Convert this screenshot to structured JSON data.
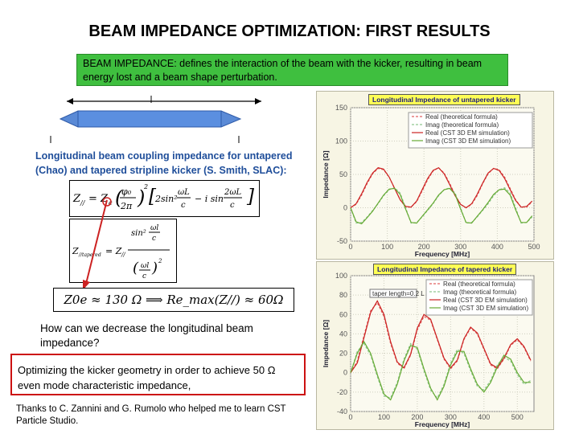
{
  "title": "BEAM IMPEDANCE OPTIMIZATION: FIRST RESULTS",
  "definition": "BEAM IMPEDANCE: defines the interaction of the beam with the kicker, resulting in beam energy lost and a beam shape perturbation.",
  "coupling_text": "Longitudinal beam coupling impedance for untapered (Chao) and tapered stripline kicker (S. Smith, SLAC):",
  "formula_bottom": "Z0e ≈ 130 Ω ⟹ Re_max(Z//) ≈ 60Ω",
  "question": "How can we decrease the longitudinal beam impedance?",
  "optimizing": "Optimizing the kicker geometry in order to achieve 50 Ω even mode characteristic impedance,",
  "thanks": "Thanks to C. Zannini and G. Rumolo who helped me to learn CST Particle Studio.",
  "colors": {
    "green_box": "#3fbf3f",
    "red_border": "#cc1111",
    "blue_text": "#1f4e9a",
    "real_formula": "#e06060",
    "imag_formula": "#90c890",
    "real_cst": "#cc2222",
    "imag_cst": "#66aa33"
  },
  "chart_data": [
    {
      "type": "line",
      "title": "Longitudinal Impedance of untapered kicker",
      "xlabel": "Frequency [MHz]",
      "ylabel": "Impedance [Ω]",
      "xlim": [
        0,
        500
      ],
      "ylim": [
        -50,
        150
      ],
      "xticks": [
        0,
        100,
        200,
        300,
        400,
        500
      ],
      "yticks": [
        -50,
        0,
        50,
        100,
        150
      ],
      "xtick_labels": [
        "0",
        "100",
        "200",
        "300",
        "400",
        "500"
      ],
      "ytick_labels": [
        "-50",
        "0",
        "50",
        "100",
        "150"
      ],
      "annotation": "",
      "legend_position": "top-right",
      "series": [
        {
          "name": "Real (theoretical formula)",
          "color": "#e06060",
          "dash": "3,2",
          "x": [
            0,
            15,
            30,
            45,
            60,
            75,
            90,
            105,
            120,
            135,
            150,
            165,
            180,
            195,
            210,
            225,
            240,
            255,
            270,
            285,
            300,
            315,
            330,
            345,
            360,
            375,
            390,
            405,
            420,
            435,
            450,
            465,
            480,
            495
          ],
          "y": [
            0,
            5,
            19,
            36,
            51,
            59,
            57,
            46,
            29,
            12,
            1,
            1,
            9,
            25,
            42,
            55,
            60,
            52,
            37,
            19,
            5,
            0,
            5,
            18,
            36,
            51,
            59,
            57,
            46,
            29,
            12,
            1,
            1,
            9
          ]
        },
        {
          "name": "Imag (theoretical formula)",
          "color": "#90c890",
          "dash": "3,2",
          "x": [
            0,
            15,
            30,
            45,
            60,
            75,
            90,
            105,
            120,
            135,
            150,
            165,
            180,
            195,
            210,
            225,
            240,
            255,
            270,
            285,
            300,
            315,
            330,
            345,
            360,
            375,
            390,
            405,
            420,
            435,
            450,
            465,
            480,
            495
          ],
          "y": [
            0,
            -23,
            -22,
            -14,
            -4,
            6,
            18,
            27,
            30,
            22,
            0,
            -23,
            -22,
            -14,
            -4,
            6,
            18,
            27,
            30,
            22,
            0,
            -23,
            -22,
            -14,
            -4,
            6,
            18,
            27,
            30,
            22,
            0,
            -23,
            -22,
            -14
          ]
        },
        {
          "name": "Real (CST 3D EM simulation)",
          "color": "#cc2222",
          "dash": "",
          "x": [
            0,
            15,
            30,
            45,
            60,
            75,
            90,
            105,
            120,
            135,
            150,
            165,
            180,
            195,
            210,
            225,
            240,
            255,
            270,
            285,
            300,
            315,
            330,
            345,
            360,
            375,
            390,
            405,
            420,
            435,
            450,
            465,
            480,
            495
          ],
          "y": [
            0,
            6,
            21,
            38,
            52,
            60,
            58,
            46,
            29,
            12,
            2,
            1,
            10,
            27,
            44,
            56,
            60,
            51,
            35,
            18,
            5,
            0,
            6,
            20,
            37,
            52,
            59,
            56,
            44,
            27,
            11,
            1,
            2,
            10
          ]
        },
        {
          "name": "Imag (CST 3D EM simulation)",
          "color": "#66aa33",
          "dash": "",
          "x": [
            0,
            15,
            30,
            45,
            60,
            75,
            90,
            105,
            120,
            135,
            150,
            165,
            180,
            195,
            210,
            225,
            240,
            255,
            270,
            285,
            300,
            315,
            330,
            345,
            360,
            375,
            390,
            405,
            420,
            435,
            450,
            465,
            480,
            495
          ],
          "y": [
            0,
            -21,
            -24,
            -15,
            -5,
            7,
            19,
            28,
            29,
            20,
            -2,
            -22,
            -23,
            -13,
            -3,
            7,
            19,
            27,
            29,
            20,
            -2,
            -22,
            -23,
            -13,
            -3,
            8,
            20,
            27,
            28,
            19,
            -3,
            -22,
            -22,
            -12
          ]
        }
      ]
    },
    {
      "type": "line",
      "title": "Longitudinal Impedance of tapered kicker",
      "xlabel": "Frequency [MHz]",
      "ylabel": "Impedance [Ω]",
      "xlim": [
        0,
        550
      ],
      "ylim": [
        -40,
        100
      ],
      "xticks": [
        0,
        100,
        200,
        300,
        400,
        500
      ],
      "yticks": [
        -40,
        -20,
        0,
        20,
        40,
        60,
        80,
        100
      ],
      "xtick_labels": [
        "0",
        "100",
        "200",
        "300",
        "400",
        "500"
      ],
      "ytick_labels": [
        "-40",
        "-20",
        "0",
        "20",
        "40",
        "60",
        "80",
        "100"
      ],
      "annotation": "taper length=0.2 L",
      "legend_position": "top-right",
      "series": [
        {
          "name": "Real (theoretical formula)",
          "color": "#e06060",
          "dash": "3,2",
          "x": [
            0,
            20,
            40,
            60,
            80,
            100,
            120,
            140,
            160,
            180,
            200,
            220,
            240,
            260,
            280,
            300,
            320,
            340,
            360,
            380,
            400,
            420,
            440,
            460,
            480,
            500,
            520,
            540
          ],
          "y": [
            0,
            12,
            38,
            64,
            72,
            58,
            30,
            10,
            4,
            18,
            44,
            58,
            54,
            34,
            14,
            4,
            12,
            34,
            46,
            40,
            24,
            8,
            4,
            14,
            28,
            34,
            26,
            12
          ]
        },
        {
          "name": "Imag (theoretical formula)",
          "color": "#90c890",
          "dash": "3,2",
          "x": [
            0,
            20,
            40,
            60,
            80,
            100,
            120,
            140,
            160,
            180,
            200,
            220,
            240,
            260,
            280,
            300,
            320,
            340,
            360,
            380,
            400,
            420,
            440,
            460,
            480,
            500,
            520,
            540
          ],
          "y": [
            0,
            22,
            30,
            18,
            -4,
            -24,
            -26,
            -10,
            14,
            30,
            24,
            2,
            -18,
            -26,
            -12,
            10,
            24,
            20,
            2,
            -14,
            -18,
            -8,
            8,
            16,
            12,
            -2,
            -12,
            -8
          ]
        },
        {
          "name": "Real (CST 3D EM simulation)",
          "color": "#cc2222",
          "dash": "",
          "x": [
            0,
            20,
            40,
            60,
            80,
            100,
            120,
            140,
            160,
            180,
            200,
            220,
            240,
            260,
            280,
            300,
            320,
            340,
            360,
            380,
            400,
            420,
            440,
            460,
            480,
            500,
            520,
            540
          ],
          "y": [
            0,
            10,
            36,
            62,
            74,
            60,
            32,
            11,
            5,
            19,
            46,
            60,
            55,
            35,
            15,
            5,
            13,
            35,
            47,
            41,
            25,
            9,
            5,
            15,
            29,
            35,
            27,
            13
          ]
        },
        {
          "name": "Imag (CST 3D EM simulation)",
          "color": "#66aa33",
          "dash": "",
          "x": [
            0,
            20,
            40,
            60,
            80,
            100,
            120,
            140,
            160,
            180,
            200,
            220,
            240,
            260,
            280,
            300,
            320,
            340,
            360,
            380,
            400,
            420,
            440,
            460,
            480,
            500,
            520,
            540
          ],
          "y": [
            0,
            20,
            32,
            20,
            -2,
            -22,
            -28,
            -12,
            12,
            28,
            26,
            4,
            -16,
            -28,
            -14,
            8,
            22,
            22,
            4,
            -12,
            -20,
            -10,
            6,
            18,
            14,
            0,
            -10,
            -10
          ]
        }
      ]
    }
  ]
}
